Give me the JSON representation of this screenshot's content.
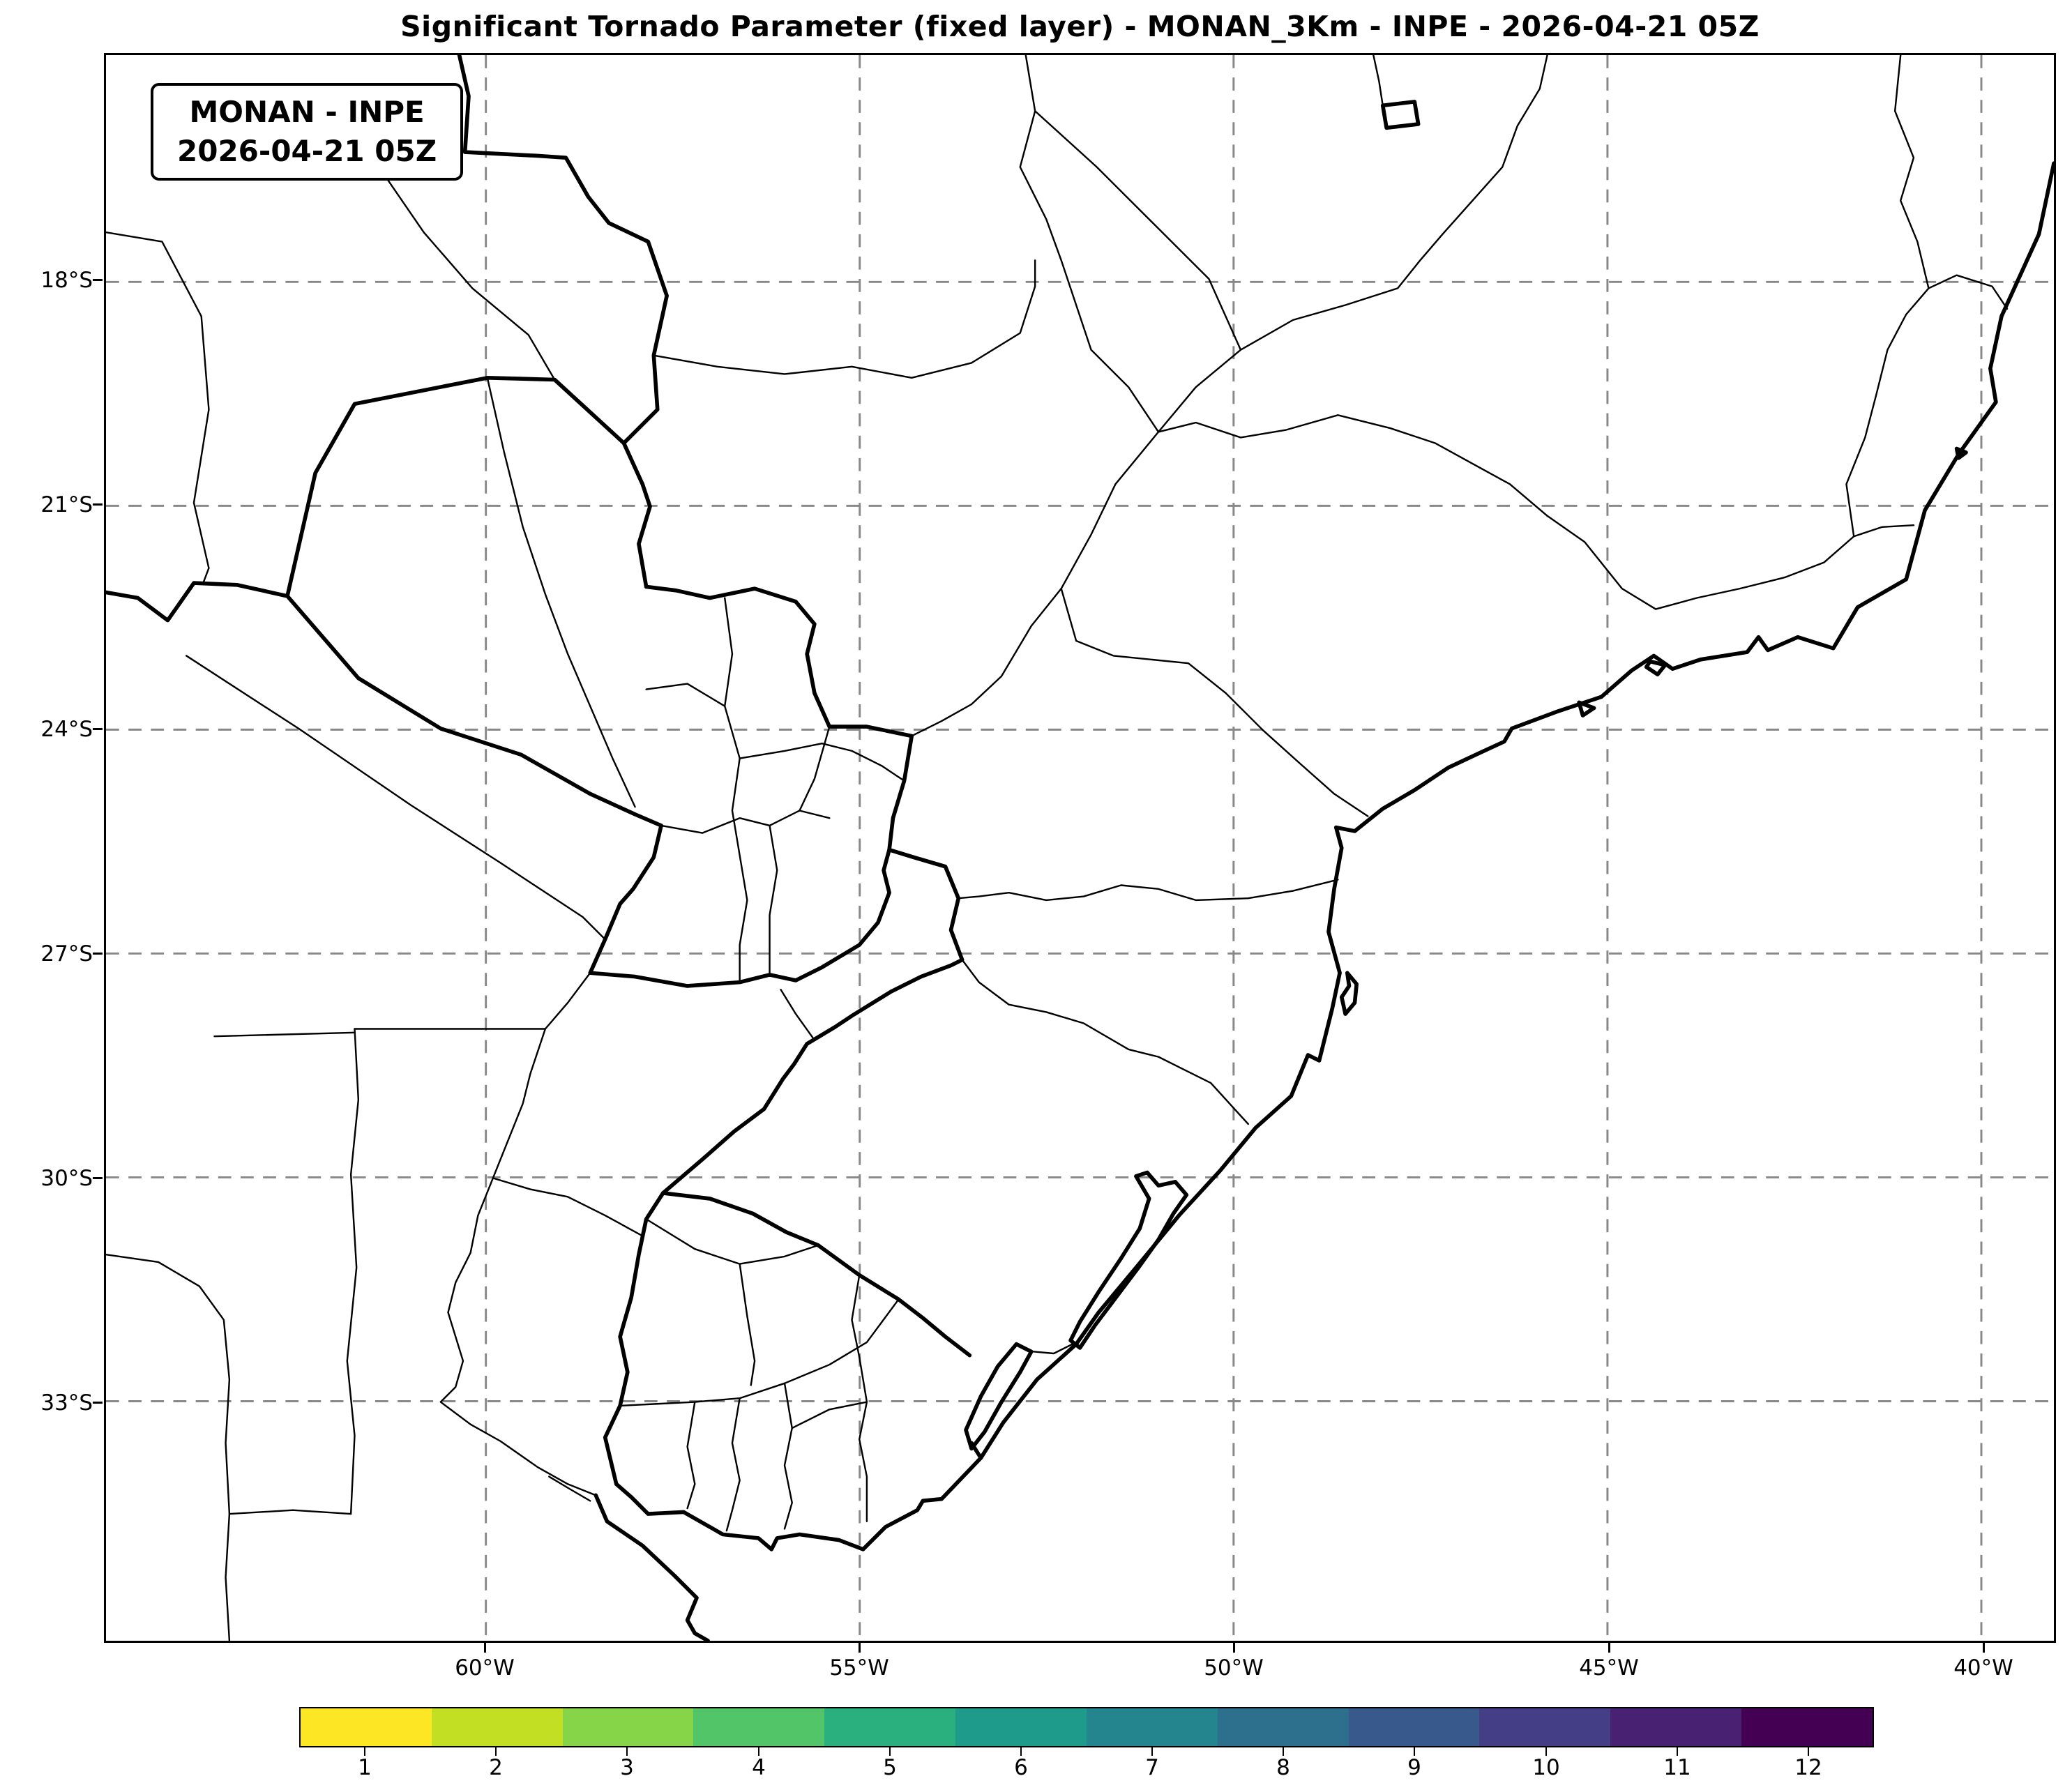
{
  "title": "Significant Tornado Parameter (fixed layer) - MONAN_3Km - INPE - 2026-04-21 05Z",
  "info_box": {
    "line1": "MONAN - INPE",
    "line2": "2026-04-21 05Z"
  },
  "axes": {
    "y_ticks": [
      "18°S",
      "21°S",
      "24°S",
      "27°S",
      "30°S",
      "33°S"
    ],
    "x_ticks": [
      "60°W",
      "55°W",
      "50°W",
      "45°W",
      "40°W"
    ]
  },
  "colorbar": {
    "tick_labels": [
      "1",
      "2",
      "3",
      "4",
      "5",
      "6",
      "7",
      "8",
      "9",
      "10",
      "11",
      "12"
    ],
    "colors": [
      "#fde725",
      "#c2df23",
      "#86d549",
      "#52c569",
      "#2ab07f",
      "#1e9b8a",
      "#25858e",
      "#2d708e",
      "#38598c",
      "#433e85",
      "#482173",
      "#440154"
    ],
    "colormap": "viridis reversed",
    "border_color": "#000000"
  },
  "map_style": {
    "grid_color": "#888888",
    "line_color": "#000000",
    "background": "#ffffff"
  }
}
